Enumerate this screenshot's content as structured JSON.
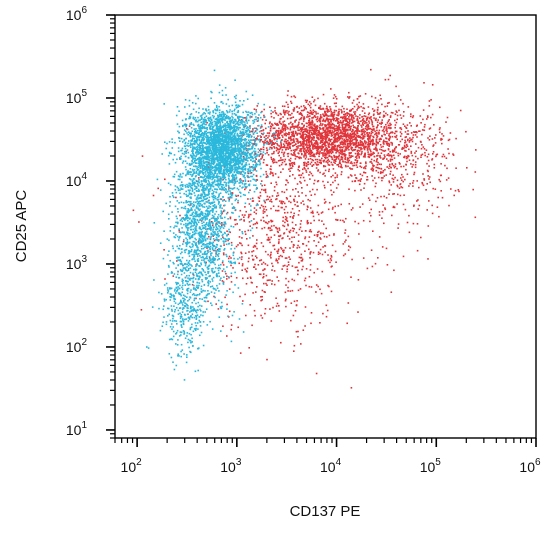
{
  "chart_data": {
    "type": "scatter",
    "x_scale": "log",
    "y_scale": "log",
    "xlabel": "CD137 PE",
    "ylabel": "CD25 APC",
    "xlim": [
      60,
      1000000
    ],
    "ylim": [
      8,
      1000000
    ],
    "grid": false,
    "x_ticks": [
      {
        "base": "10",
        "exp": "2",
        "value": 100
      },
      {
        "base": "10",
        "exp": "3",
        "value": 1000
      },
      {
        "base": "10",
        "exp": "4",
        "value": 10000
      },
      {
        "base": "10",
        "exp": "5",
        "value": 100000
      },
      {
        "base": "10",
        "exp": "6",
        "value": 1000000
      }
    ],
    "y_ticks": [
      {
        "base": "10",
        "exp": "1",
        "value": 10
      },
      {
        "base": "10",
        "exp": "2",
        "value": 100
      },
      {
        "base": "10",
        "exp": "3",
        "value": 1000
      },
      {
        "base": "10",
        "exp": "4",
        "value": 10000
      },
      {
        "base": "10",
        "exp": "5",
        "value": 100000
      },
      {
        "base": "10",
        "exp": "6",
        "value": 1000000
      }
    ],
    "series": [
      {
        "color": "#2ab8dc",
        "clusters": [
          {
            "center": [
              700,
              25000
            ],
            "spread_log10": [
              0.18,
              0.25
            ],
            "count": 2600
          },
          {
            "center": [
              450,
              3000
            ],
            "spread_log10": [
              0.15,
              0.45
            ],
            "count": 1300
          },
          {
            "center": [
              300,
              300
            ],
            "spread_log10": [
              0.12,
              0.3
            ],
            "count": 350
          }
        ]
      },
      {
        "color": "#e0343a",
        "clusters": [
          {
            "center": [
              8000,
              35000
            ],
            "spread_log10": [
              0.35,
              0.2
            ],
            "count": 2200
          },
          {
            "center": [
              2500,
              2500
            ],
            "spread_log10": [
              0.45,
              0.55
            ],
            "count": 900
          },
          {
            "center": [
              40000,
              20000
            ],
            "spread_log10": [
              0.3,
              0.35
            ],
            "count": 500
          }
        ]
      }
    ]
  }
}
